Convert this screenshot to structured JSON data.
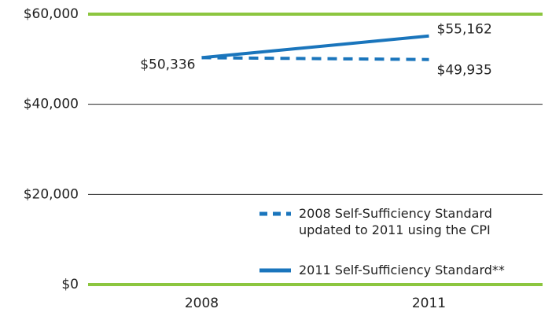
{
  "chart_data": {
    "type": "line",
    "categories": [
      "2008",
      "2011"
    ],
    "series": [
      {
        "name": "2008 Self-Sufficiency Standard updated to 2011 using the CPI",
        "color": "#1a75bc",
        "dash": true,
        "values": [
          50336,
          49935
        ],
        "value_labels": [
          "$50,336",
          "$49,935"
        ]
      },
      {
        "name": "2011 Self-Sufficiency Standard**",
        "color": "#1a75bc",
        "dash": false,
        "values": [
          50336,
          55162
        ],
        "value_labels": [
          null,
          "$55,162"
        ]
      }
    ],
    "ylim": [
      0,
      60000
    ],
    "yticks": [
      {
        "value": 0,
        "label": "$0"
      },
      {
        "value": 20000,
        "label": "$20,000"
      },
      {
        "value": 40000,
        "label": "$40,000"
      },
      {
        "value": 60000,
        "label": "$60,000"
      }
    ],
    "grid": true
  }
}
